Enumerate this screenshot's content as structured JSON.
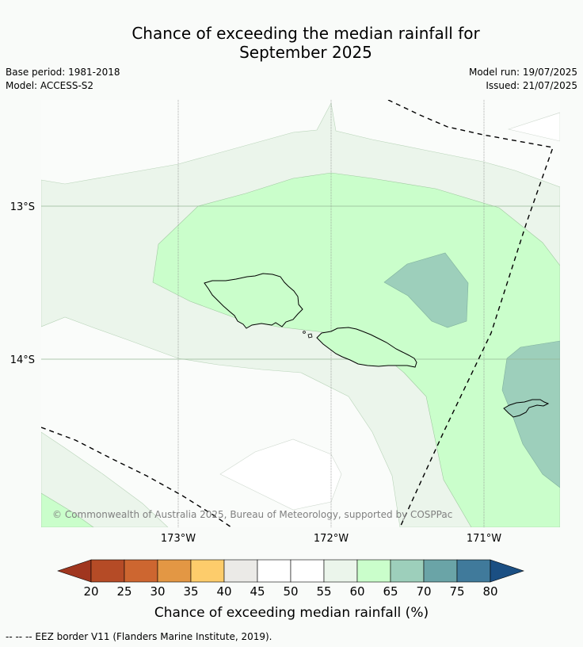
{
  "title": {
    "line1": "Chance of exceeding the median rainfall for",
    "line2": "September 2025"
  },
  "meta": {
    "base_period": "Base period: 1981-2018",
    "model": "Model: ACCESS-S2",
    "model_run": "Model run: 19/07/2025",
    "issued": "Issued: 21/07/2025"
  },
  "map": {
    "lat_labels": [
      "13°S",
      "14°S"
    ],
    "lon_labels": [
      "173°W",
      "172°W",
      "171°W"
    ],
    "copyright": "© Commonwealth of Australia 2025, Bureau of Meteorology, supported by COSPPac"
  },
  "colorbar": {
    "label": "Chance of exceeding median rainfall (%)",
    "ticks": [
      "20",
      "25",
      "30",
      "35",
      "40",
      "45",
      "50",
      "55",
      "60",
      "65",
      "70",
      "75",
      "80"
    ],
    "colors": [
      "#a0361f",
      "#b54b26",
      "#cd6630",
      "#e39744",
      "#fdcc6b",
      "#ebeae7",
      "#ffffff",
      "#ffffff",
      "#ebf5eb",
      "#cafecb",
      "#9dcfbb",
      "#6aa4a7",
      "#407a9b",
      "#1b4f83"
    ]
  },
  "legend": {
    "eez": "--  --  -- EEZ border V11 (Flanders Marine Institute, 2019)."
  }
}
